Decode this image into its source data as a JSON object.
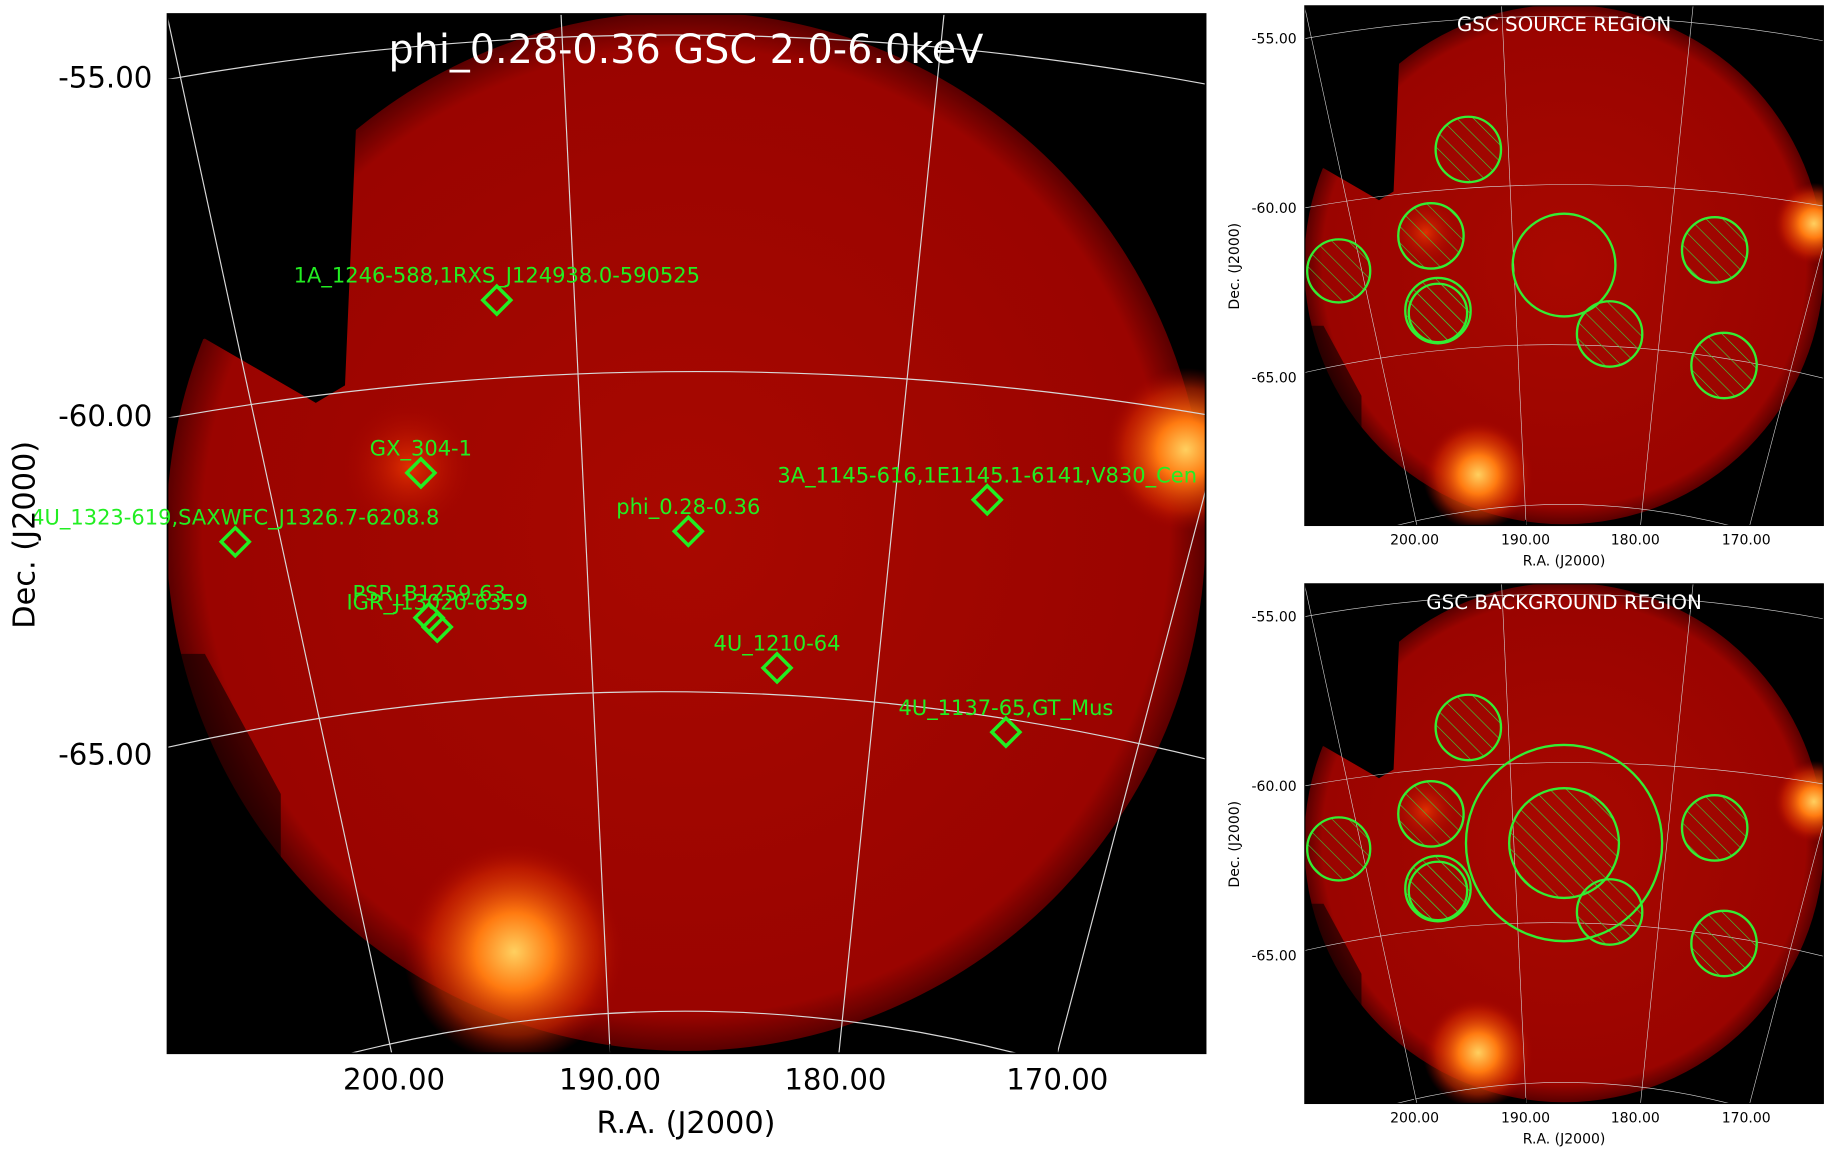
{
  "main_panel": {
    "title": "phi_0.28-0.36 GSC 2.0-6.0keV",
    "x_label": "R.A. (J2000)",
    "y_label": "Dec. (J2000)",
    "x_ticks": [
      "200.00",
      "190.00",
      "180.00",
      "170.00"
    ],
    "y_ticks": [
      "-55.00",
      "-60.00",
      "-65.00"
    ],
    "sources": [
      {
        "label": "1A_1246-588,1RXS_J124938.0-590525"
      },
      {
        "label": "GX_304-1"
      },
      {
        "label": "4U_1323-619,SAXWFC_J1326.7-6208.8"
      },
      {
        "label": "phi_0.28-0.36"
      },
      {
        "label": "3A_1145-616,1E1145.1-6141,V830_Cen"
      },
      {
        "label": "PSR_B1259-63"
      },
      {
        "label": "IGR_J13020-6359"
      },
      {
        "label": "4U_1210-64"
      },
      {
        "label": "4U_1137-65,GT_Mus"
      }
    ]
  },
  "source_panel": {
    "title": "GSC SOURCE REGION",
    "x_label": "R.A. (J2000)",
    "y_label": "Dec. (J2000)",
    "x_ticks": [
      "200.00",
      "190.00",
      "180.00",
      "170.00"
    ],
    "y_ticks": [
      "-55.00",
      "-60.00",
      "-65.00"
    ]
  },
  "background_panel": {
    "title": "GSC BACKGROUND REGION",
    "x_label": "R.A. (J2000)",
    "y_label": "Dec. (J2000)",
    "x_ticks": [
      "200.00",
      "190.00",
      "180.00",
      "170.00"
    ],
    "y_ticks": [
      "-55.00",
      "-60.00",
      "-65.00"
    ]
  }
}
